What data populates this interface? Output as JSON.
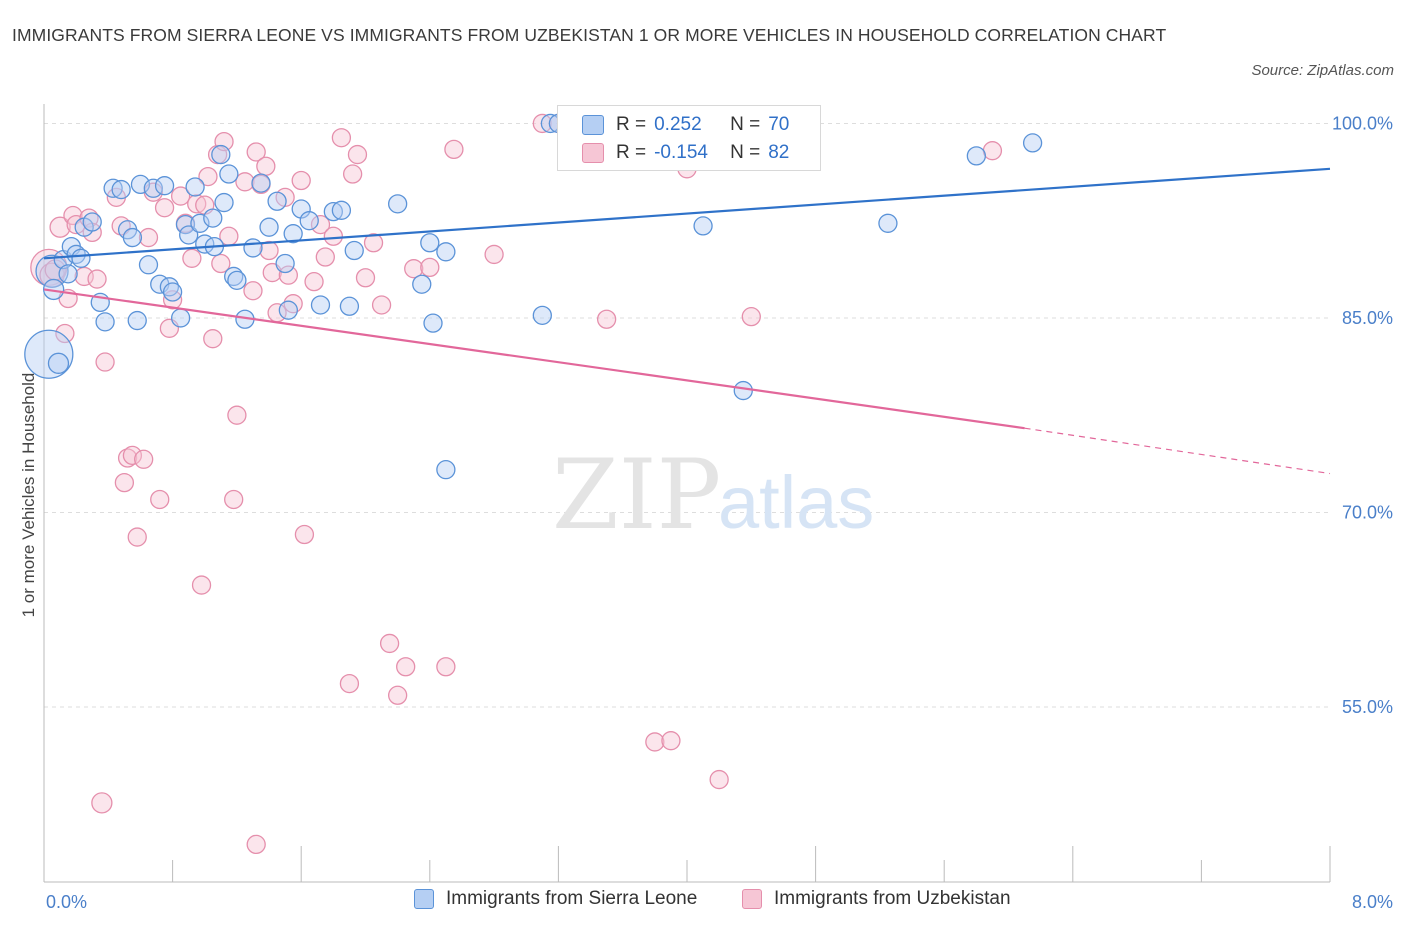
{
  "title": "IMMIGRANTS FROM SIERRA LEONE VS IMMIGRANTS FROM UZBEKISTAN 1 OR MORE VEHICLES IN HOUSEHOLD CORRELATION CHART",
  "source": "Source: ZipAtlas.com",
  "watermark": {
    "zip": "ZIP",
    "atlas": "atlas"
  },
  "colors": {
    "blue": "#5b93d8",
    "blue_fill": "#b5cff3",
    "blue_line": "#2f72c9",
    "pink": "#e58fac",
    "pink_fill": "#f6c6d5",
    "pink_line": "#e2679a",
    "grid": "#dddddd",
    "tick_text": "#4a7fc9"
  },
  "legend_top": {
    "rows": [
      {
        "r_label": "R =",
        "r_value": "0.252",
        "n_label": "N =",
        "n_value": "70"
      },
      {
        "r_label": "R =",
        "r_value": "-0.154",
        "n_label": "N =",
        "n_value": "82"
      }
    ]
  },
  "legend_bottom": [
    "Immigrants from Sierra Leone",
    "Immigrants from Uzbekistan"
  ],
  "chart_data": {
    "type": "scatter",
    "xlabel": "",
    "ylabel": "1 or more Vehicles in Household",
    "xlim": [
      0,
      8
    ],
    "ylim": [
      41.5,
      101.5
    ],
    "x_tick_labels": [
      {
        "value": 0,
        "label": "0.0%"
      },
      {
        "value": 8,
        "label": "8.0%"
      }
    ],
    "y_ticks": [
      {
        "value": 100,
        "label": "100.0%"
      },
      {
        "value": 85,
        "label": "85.0%"
      },
      {
        "value": 70,
        "label": "70.0%"
      },
      {
        "value": 55,
        "label": "55.0%"
      }
    ],
    "grid": true,
    "legend_position": "bottom",
    "series": [
      {
        "name": "Immigrants from Sierra Leone",
        "color": "#5b93d8",
        "trend": {
          "x": [
            0,
            8
          ],
          "y": [
            89.6,
            96.5
          ]
        },
        "points": [
          [
            0.03,
            82.2,
            24
          ],
          [
            0.05,
            88.6,
            16
          ],
          [
            0.06,
            87.2,
            10
          ],
          [
            0.09,
            81.5,
            10
          ],
          [
            0.12,
            89.5,
            9
          ],
          [
            0.15,
            88.4,
            9
          ],
          [
            0.17,
            90.5,
            9
          ],
          [
            0.2,
            89.9,
            9
          ],
          [
            0.23,
            89.6,
            9
          ],
          [
            0.25,
            92.0,
            9
          ],
          [
            0.3,
            92.4,
            9
          ],
          [
            0.35,
            86.2,
            9
          ],
          [
            0.38,
            84.7,
            9
          ],
          [
            0.43,
            95.0,
            9
          ],
          [
            0.48,
            94.9,
            9
          ],
          [
            0.52,
            91.8,
            9
          ],
          [
            0.55,
            91.2,
            9
          ],
          [
            0.58,
            84.8,
            9
          ],
          [
            0.6,
            95.3,
            9
          ],
          [
            0.65,
            89.1,
            9
          ],
          [
            0.68,
            95.0,
            9
          ],
          [
            0.72,
            87.6,
            9
          ],
          [
            0.75,
            95.2,
            9
          ],
          [
            0.78,
            87.4,
            9
          ],
          [
            0.8,
            87.0,
            9
          ],
          [
            0.85,
            85.0,
            9
          ],
          [
            0.88,
            92.2,
            9
          ],
          [
            0.9,
            91.4,
            9
          ],
          [
            0.94,
            95.1,
            9
          ],
          [
            0.97,
            92.3,
            9
          ],
          [
            1.0,
            90.7,
            9
          ],
          [
            1.05,
            92.7,
            9
          ],
          [
            1.06,
            90.5,
            9
          ],
          [
            1.1,
            97.6,
            9
          ],
          [
            1.12,
            93.9,
            9
          ],
          [
            1.15,
            96.1,
            9
          ],
          [
            1.18,
            88.2,
            9
          ],
          [
            1.2,
            87.9,
            9
          ],
          [
            1.25,
            84.9,
            9
          ],
          [
            1.3,
            90.4,
            9
          ],
          [
            1.35,
            95.4,
            9
          ],
          [
            1.4,
            92.0,
            9
          ],
          [
            1.45,
            94.0,
            9
          ],
          [
            1.5,
            89.2,
            9
          ],
          [
            1.52,
            85.6,
            9
          ],
          [
            1.55,
            91.5,
            9
          ],
          [
            1.6,
            93.4,
            9
          ],
          [
            1.65,
            92.5,
            9
          ],
          [
            1.72,
            86.0,
            9
          ],
          [
            1.8,
            93.2,
            9
          ],
          [
            1.85,
            93.3,
            9
          ],
          [
            1.9,
            85.9,
            9
          ],
          [
            1.93,
            90.2,
            9
          ],
          [
            2.2,
            93.8,
            9
          ],
          [
            2.35,
            87.6,
            9
          ],
          [
            2.4,
            90.8,
            9
          ],
          [
            2.42,
            84.6,
            9
          ],
          [
            2.5,
            90.1,
            9
          ],
          [
            2.5,
            73.3,
            9
          ],
          [
            3.1,
            85.2,
            9
          ],
          [
            3.15,
            100.0,
            9
          ],
          [
            3.2,
            100.0,
            9
          ],
          [
            3.45,
            100.0,
            9
          ],
          [
            4.1,
            92.1,
            9
          ],
          [
            4.35,
            79.4,
            9
          ],
          [
            4.45,
            100.0,
            9
          ],
          [
            5.25,
            92.3,
            9
          ],
          [
            5.8,
            97.5,
            9
          ],
          [
            6.15,
            98.5,
            9
          ]
        ]
      },
      {
        "name": "Immigrants from Uzbekistan",
        "color": "#e58fac",
        "trend": {
          "x": [
            0,
            6.1
          ],
          "y": [
            87.2,
            76.5
          ],
          "dash_x": [
            6.1,
            8
          ],
          "dash_y": [
            76.5,
            73.0
          ]
        },
        "points": [
          [
            0.03,
            88.9,
            18
          ],
          [
            0.05,
            88.3,
            12
          ],
          [
            0.07,
            88.7,
            10
          ],
          [
            0.1,
            92.0,
            10
          ],
          [
            0.13,
            83.8,
            9
          ],
          [
            0.15,
            86.5,
            9
          ],
          [
            0.18,
            92.9,
            9
          ],
          [
            0.2,
            92.2,
            9
          ],
          [
            0.25,
            88.2,
            9
          ],
          [
            0.28,
            92.7,
            9
          ],
          [
            0.3,
            91.6,
            9
          ],
          [
            0.33,
            88.0,
            9
          ],
          [
            0.38,
            81.6,
            9
          ],
          [
            0.45,
            94.3,
            9
          ],
          [
            0.48,
            92.1,
            9
          ],
          [
            0.5,
            72.3,
            9
          ],
          [
            0.52,
            74.2,
            9
          ],
          [
            0.55,
            74.4,
            9
          ],
          [
            0.58,
            68.1,
            9
          ],
          [
            0.62,
            74.1,
            9
          ],
          [
            0.65,
            91.2,
            9
          ],
          [
            0.68,
            94.7,
            9
          ],
          [
            0.72,
            71.0,
            9
          ],
          [
            0.75,
            93.5,
            9
          ],
          [
            0.78,
            84.2,
            9
          ],
          [
            0.8,
            86.4,
            9
          ],
          [
            0.85,
            94.4,
            9
          ],
          [
            0.88,
            92.3,
            9
          ],
          [
            0.92,
            89.6,
            9
          ],
          [
            0.95,
            93.8,
            9
          ],
          [
            0.98,
            64.4,
            9
          ],
          [
            1.0,
            93.7,
            9
          ],
          [
            1.02,
            95.9,
            9
          ],
          [
            1.05,
            83.4,
            9
          ],
          [
            1.08,
            97.6,
            9
          ],
          [
            1.1,
            89.2,
            9
          ],
          [
            1.12,
            98.6,
            9
          ],
          [
            1.15,
            91.3,
            9
          ],
          [
            1.18,
            71.0,
            9
          ],
          [
            1.2,
            77.5,
            9
          ],
          [
            1.25,
            95.5,
            9
          ],
          [
            1.3,
            87.1,
            9
          ],
          [
            1.32,
            97.8,
            9
          ],
          [
            1.35,
            95.3,
            9
          ],
          [
            1.38,
            96.7,
            9
          ],
          [
            1.4,
            90.2,
            9
          ],
          [
            1.42,
            88.5,
            9
          ],
          [
            1.45,
            85.4,
            9
          ],
          [
            1.5,
            94.3,
            9
          ],
          [
            1.52,
            88.3,
            9
          ],
          [
            1.55,
            86.1,
            9
          ],
          [
            1.6,
            95.6,
            9
          ],
          [
            1.62,
            68.3,
            9
          ],
          [
            1.68,
            87.8,
            9
          ],
          [
            1.72,
            92.2,
            9
          ],
          [
            1.75,
            89.7,
            9
          ],
          [
            1.8,
            91.3,
            9
          ],
          [
            1.85,
            98.9,
            9
          ],
          [
            1.9,
            56.8,
            9
          ],
          [
            1.92,
            96.1,
            9
          ],
          [
            1.95,
            97.6,
            9
          ],
          [
            2.0,
            88.1,
            9
          ],
          [
            2.05,
            90.8,
            9
          ],
          [
            2.1,
            86.0,
            9
          ],
          [
            2.15,
            59.9,
            9
          ],
          [
            2.2,
            55.9,
            9
          ],
          [
            2.25,
            58.1,
            9
          ],
          [
            2.3,
            88.8,
            9
          ],
          [
            2.4,
            88.9,
            9
          ],
          [
            2.5,
            58.1,
            9
          ],
          [
            2.55,
            98.0,
            9
          ],
          [
            2.8,
            89.9,
            9
          ],
          [
            3.1,
            100.0,
            9
          ],
          [
            3.2,
            100.0,
            9
          ],
          [
            3.3,
            100.0,
            9
          ],
          [
            3.5,
            84.9,
            9
          ],
          [
            3.8,
            52.3,
            9
          ],
          [
            3.9,
            52.4,
            9
          ],
          [
            4.0,
            96.5,
            9
          ],
          [
            4.2,
            49.4,
            9
          ],
          [
            4.4,
            85.1,
            9
          ],
          [
            5.9,
            97.9,
            9
          ],
          [
            0.36,
            47.6,
            10
          ],
          [
            1.32,
            44.4,
            9
          ]
        ]
      }
    ]
  }
}
